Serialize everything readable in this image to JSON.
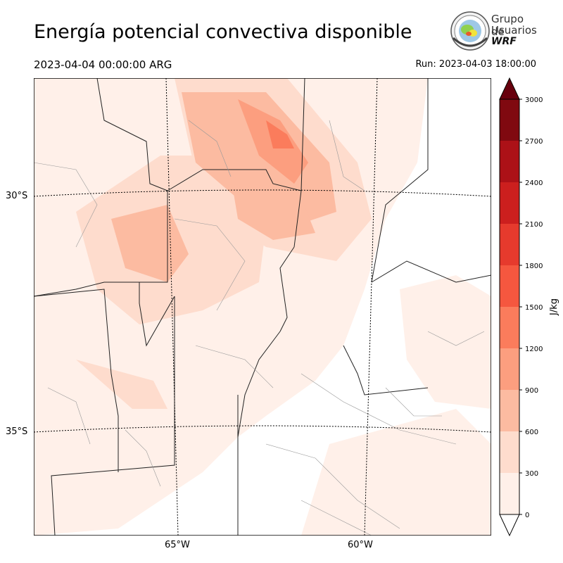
{
  "header": {
    "title": "Energía potencial convectiva disponible",
    "valid_time": "2023-04-04 00:00:00 ARG",
    "run_time": "Run: 2023-04-03 18:00:00"
  },
  "logo": {
    "line1": "Grupo de",
    "line2": "Usuarios",
    "line3": "WRF"
  },
  "map": {
    "lat_labels": [
      "30°S",
      "35°S"
    ],
    "lon_labels": [
      "65°W",
      "60°W"
    ]
  },
  "colorbar": {
    "unit": "J/kg",
    "ticks": [
      "0",
      "300",
      "600",
      "900",
      "1200",
      "1500",
      "1800",
      "2100",
      "2400",
      "2700",
      "3000"
    ],
    "colors": [
      "#fff0e9",
      "#fedccd",
      "#fcbba1",
      "#fc9e7f",
      "#fb7c5c",
      "#f5573f",
      "#e63a2d",
      "#cc1f1e",
      "#ac1117",
      "#800910",
      "#67000d"
    ]
  }
}
